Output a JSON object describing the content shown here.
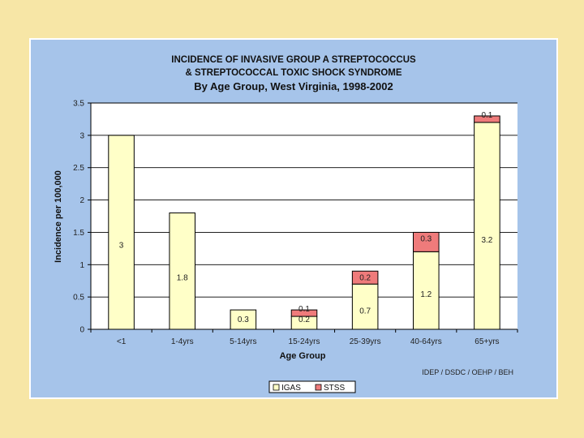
{
  "chart_data": {
    "type": "bar",
    "stacked": true,
    "title": "INCIDENCE OF INVASIVE GROUP A STREPTOCOCCUS",
    "title_line2": "& STREPTOCOCCAL TOXIC SHOCK  SYNDROME",
    "subtitle": "By Age Group, West Virginia, 1998-2002",
    "xlabel": "Age Group",
    "ylabel": "Incidence per 100,000",
    "ylim": [
      0,
      3.5
    ],
    "yticks": [
      "0",
      "0.5",
      "1",
      "1.5",
      "2",
      "2.5",
      "3",
      "3.5"
    ],
    "ytick_values": [
      0,
      0.5,
      1,
      1.5,
      2,
      2.5,
      3,
      3.5
    ],
    "categories": [
      "<1",
      "1-4yrs",
      "5-14yrs",
      "15-24yrs",
      "25-39yrs",
      "40-64yrs",
      "65+yrs"
    ],
    "series": [
      {
        "name": "IGAS",
        "color": "#ffffc8",
        "values": [
          3,
          1.8,
          0.3,
          0.2,
          0.7,
          1.2,
          3.2
        ],
        "labels": [
          "3",
          "1.8",
          "0.3",
          "0.2",
          "0.7",
          "1.2",
          "3.2"
        ]
      },
      {
        "name": "STSS",
        "color": "#ef7b7b",
        "values": [
          0,
          0,
          0,
          0.1,
          0.2,
          0.3,
          0.1
        ],
        "labels": [
          "",
          "",
          "",
          "0.1",
          "0.2",
          "0.3",
          "0.1"
        ]
      }
    ],
    "legend_position": "bottom-center",
    "grid": true,
    "credit": "IDEP / DSDC / OEHP / BEH"
  }
}
